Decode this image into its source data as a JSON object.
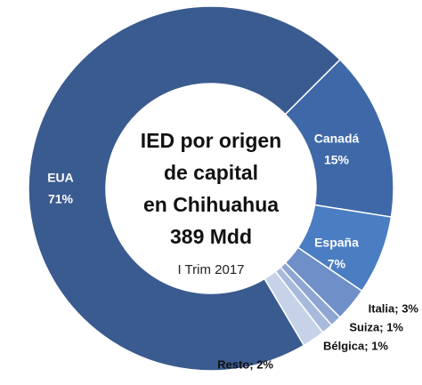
{
  "chart_data": {
    "type": "donut",
    "title": [
      "IED por origen",
      "de capital",
      "en Chihuahua",
      "389 Mdd"
    ],
    "subtitle": "I Trim 2017",
    "categories": [
      "Canadá",
      "España",
      "Italia",
      "Suiza",
      "Bélgica",
      "Resto",
      "EUA"
    ],
    "values": [
      15,
      7,
      3,
      1,
      1,
      2,
      71
    ],
    "value_labels": [
      "15%",
      "7%",
      "Italia; 3%",
      "Suiza; 1%",
      "Bélgica; 1%",
      "Resto; 2%",
      "71%"
    ],
    "colors": [
      "#3f68a8",
      "#4b7dc2",
      "#6e8fc8",
      "#8ea6d1",
      "#a8badb",
      "#c6d2e7",
      "#3a5b8f"
    ]
  }
}
